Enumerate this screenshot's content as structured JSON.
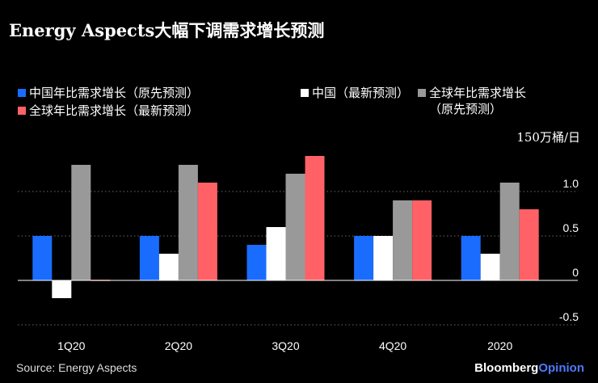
{
  "title": "Energy Aspects大幅下调需求增长预测",
  "legend": [
    {
      "label": "中国年比需求增长（原先预测）",
      "color": "#1a6cff"
    },
    {
      "label": "全球年比需求增长（最新预测）",
      "color": "#ff6166"
    },
    {
      "label": "中国（最新预测）",
      "color": "#ffffff"
    },
    {
      "label": "全球年比需求增长",
      "label2": "（原先预测）",
      "color": "#999999"
    }
  ],
  "unit_label": "150万桶/日",
  "source": "Source: Energy Aspects",
  "brand": {
    "part1": "Bloomberg",
    "part2": "Opinion"
  },
  "chart_data": {
    "type": "bar",
    "title": "Energy Aspects大幅下调需求增长预测",
    "ylabel": "150万桶/日",
    "categories": [
      "1Q20",
      "2Q20",
      "3Q20",
      "4Q20",
      "2020"
    ],
    "ylim": [
      -0.5,
      1.5
    ],
    "yticks": [
      1.0,
      0.5,
      0,
      -0.5
    ],
    "ytick_labels": [
      "1.0",
      "0.5",
      "0",
      "-0.5"
    ],
    "series": [
      {
        "name": "中国年比需求增长（原先预测）",
        "color": "#1a6cff",
        "values": [
          0.5,
          0.5,
          0.4,
          0.5,
          0.5
        ]
      },
      {
        "name": "中国（最新预测）",
        "color": "#ffffff",
        "values": [
          -0.2,
          0.3,
          0.6,
          0.5,
          0.3
        ]
      },
      {
        "name": "全球年比需求增长（原先预测）",
        "color": "#999999",
        "values": [
          1.3,
          1.3,
          1.2,
          0.9,
          1.1
        ]
      },
      {
        "name": "全球年比需求增长（最新预测）",
        "color": "#ff6166",
        "values": [
          0.0,
          1.1,
          1.4,
          0.9,
          0.8
        ]
      }
    ]
  }
}
